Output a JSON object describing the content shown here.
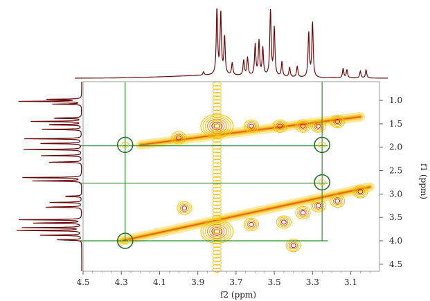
{
  "chart_data": {
    "type": "heatmap",
    "subtype": "2D NMR contour spectrum (COSY-like) with 1D projections",
    "title": "",
    "xlabel": "f2 (ppm)",
    "ylabel": "f1 (ppm)",
    "x_axis": {
      "range": [
        4.5,
        2.95
      ],
      "reversed": true,
      "ticks": [
        4.5,
        4.3,
        4.1,
        3.9,
        3.7,
        3.5,
        3.3,
        3.1
      ],
      "tick_labels": [
        "4.5",
        "4.3",
        "4.1",
        "3.9",
        "3.7",
        "3.5",
        "3.3",
        "3.1"
      ]
    },
    "y_axis": {
      "range": [
        0.6,
        4.65
      ],
      "reversed": true,
      "side": "right",
      "ticks": [
        1.0,
        1.5,
        2.0,
        2.5,
        3.0,
        3.5,
        4.0,
        4.5
      ],
      "tick_labels": [
        "1.0",
        "1.5",
        "2.0",
        "2.5",
        "3.0",
        "3.5",
        "4.0",
        "4.5"
      ]
    },
    "colors": {
      "projection": "#6b0a0a",
      "correlation_lines": "#2e8b2e",
      "contour_low": "#f2c200",
      "contour_mid": "#f08a00",
      "contour_high": "#cc1a1a",
      "frame": "#999999"
    },
    "peaks": [
      {
        "x": 3.8,
        "y": 1.55
      },
      {
        "x": 3.8,
        "y": 3.8
      },
      {
        "x": 3.62,
        "y": 1.55
      },
      {
        "x": 3.47,
        "y": 1.55
      },
      {
        "x": 3.35,
        "y": 1.55
      },
      {
        "x": 3.27,
        "y": 1.55
      },
      {
        "x": 3.17,
        "y": 1.45
      },
      {
        "x": 3.62,
        "y": 3.65
      },
      {
        "x": 3.45,
        "y": 3.6
      },
      {
        "x": 3.35,
        "y": 3.4
      },
      {
        "x": 3.27,
        "y": 3.25
      },
      {
        "x": 3.17,
        "y": 3.15
      },
      {
        "x": 3.05,
        "y": 2.95
      },
      {
        "x": 3.97,
        "y": 3.3
      },
      {
        "x": 4.0,
        "y": 1.8
      },
      {
        "x": 3.4,
        "y": 4.1
      }
    ],
    "diagonal_ridges": [
      {
        "from": [
          4.2,
          1.95
        ],
        "to": [
          3.05,
          1.35
        ]
      },
      {
        "from": [
          4.3,
          4.0
        ],
        "to": [
          3.0,
          2.85
        ]
      }
    ],
    "vertical_streak": {
      "x": 3.8,
      "y_range": [
        0.65,
        4.65
      ]
    },
    "circled_crosspeaks": [
      {
        "x": 4.28,
        "y": 1.95
      },
      {
        "x": 3.25,
        "y": 1.95
      },
      {
        "x": 3.25,
        "y": 2.75
      },
      {
        "x": 4.28,
        "y": 4.0
      }
    ],
    "correlation_lines": {
      "vertical_x": [
        4.28,
        3.25
      ],
      "horizontal_y": [
        1.97,
        2.77,
        4.0
      ],
      "y_top": 0.6
    },
    "projection_peaks": [
      {
        "ppm": 3.87,
        "h": 0.05
      },
      {
        "ppm": 3.8,
        "h": 1.0
      },
      {
        "ppm": 3.78,
        "h": 0.9
      },
      {
        "ppm": 3.76,
        "h": 0.55
      },
      {
        "ppm": 3.72,
        "h": 0.18
      },
      {
        "ppm": 3.66,
        "h": 0.22
      },
      {
        "ppm": 3.64,
        "h": 0.26
      },
      {
        "ppm": 3.6,
        "h": 0.45
      },
      {
        "ppm": 3.58,
        "h": 0.5
      },
      {
        "ppm": 3.56,
        "h": 0.4
      },
      {
        "ppm": 3.52,
        "h": 0.98
      },
      {
        "ppm": 3.5,
        "h": 0.7
      },
      {
        "ppm": 3.46,
        "h": 0.22
      },
      {
        "ppm": 3.42,
        "h": 0.14
      },
      {
        "ppm": 3.38,
        "h": 0.16
      },
      {
        "ppm": 3.32,
        "h": 0.65
      },
      {
        "ppm": 3.3,
        "h": 0.8
      },
      {
        "ppm": 3.14,
        "h": 0.14
      },
      {
        "ppm": 3.12,
        "h": 0.12
      },
      {
        "ppm": 3.05,
        "h": 0.1
      },
      {
        "ppm": 3.02,
        "h": 0.12
      }
    ],
    "f1_projection_peaks": [
      {
        "ppm": 0.98,
        "h": 0.6
      },
      {
        "ppm": 1.02,
        "h": 0.9
      },
      {
        "ppm": 1.08,
        "h": 0.4
      },
      {
        "ppm": 1.38,
        "h": 0.5
      },
      {
        "ppm": 1.45,
        "h": 0.7
      },
      {
        "ppm": 1.52,
        "h": 0.6
      },
      {
        "ppm": 1.62,
        "h": 0.55
      },
      {
        "ppm": 1.82,
        "h": 0.8
      },
      {
        "ppm": 1.92,
        "h": 0.7
      },
      {
        "ppm": 2.05,
        "h": 0.85
      },
      {
        "ppm": 2.18,
        "h": 0.6
      },
      {
        "ppm": 2.32,
        "h": 0.5
      },
      {
        "ppm": 2.65,
        "h": 1.0
      },
      {
        "ppm": 2.72,
        "h": 0.7
      },
      {
        "ppm": 3.05,
        "h": 0.3
      },
      {
        "ppm": 3.18,
        "h": 0.45
      },
      {
        "ppm": 3.28,
        "h": 0.6
      },
      {
        "ppm": 3.55,
        "h": 0.9
      },
      {
        "ppm": 3.62,
        "h": 0.8
      },
      {
        "ppm": 3.72,
        "h": 0.85
      },
      {
        "ppm": 3.78,
        "h": 1.0
      },
      {
        "ppm": 3.88,
        "h": 0.6
      },
      {
        "ppm": 3.98,
        "h": 0.4
      }
    ]
  }
}
